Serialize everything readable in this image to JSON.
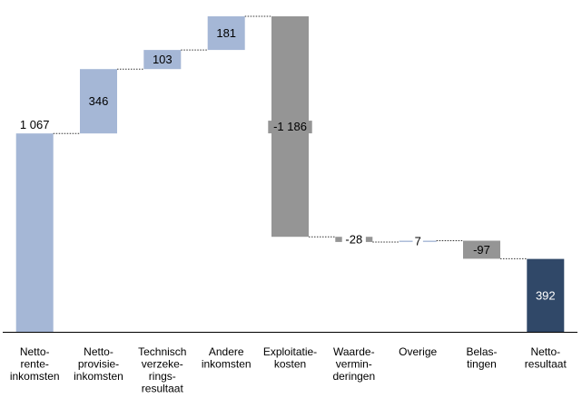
{
  "chart_data": {
    "type": "waterfall",
    "title": "",
    "xlabel": "",
    "ylabel": "",
    "grid": false,
    "legend": "none",
    "ylim": [
      0,
      1697
    ],
    "categories": [
      "Netto-\nrente-\ninkomsten",
      "Netto-\nprovisie-\ninkomsten",
      "Technisch\nverzeke-\nrings-\nresultaat",
      "Andere\ninkomsten",
      "Exploitatie-\nkosten",
      "Waarde-\nvermin-\nderingen",
      "Overige",
      "Belas-\ntingen",
      "Netto-\nresultaat"
    ],
    "values": [
      1067,
      346,
      103,
      181,
      -1186,
      -28,
      7,
      -97,
      392
    ],
    "value_labels": [
      "1 067",
      "346",
      "103",
      "181",
      "-1 186",
      "-28",
      "7",
      "-97",
      "392"
    ],
    "bar_kind": [
      "total",
      "increase",
      "increase",
      "increase",
      "decrease",
      "decrease",
      "increase",
      "decrease",
      "total"
    ],
    "colors": {
      "start_total": "#a5b7d6",
      "increase": "#a5b7d6",
      "decrease": "#959595",
      "end_total": "#304868",
      "connector": "#333333",
      "axis": "#000000"
    }
  }
}
